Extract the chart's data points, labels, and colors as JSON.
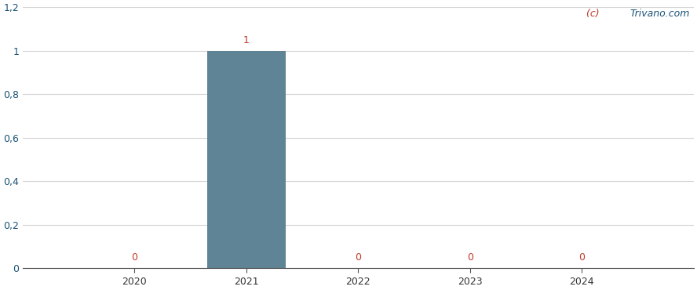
{
  "years": [
    2020,
    2021,
    2022,
    2023,
    2024
  ],
  "values": [
    0,
    1,
    0,
    0,
    0
  ],
  "bar_color": "#5f8496",
  "bar_label_color": "#c0392b",
  "background_color": "#ffffff",
  "grid_color": "#d5d5d5",
  "ylim": [
    0,
    1.2
  ],
  "yticks": [
    0,
    0.2,
    0.4,
    0.6,
    0.8,
    1.0,
    1.2
  ],
  "ytick_labels": [
    "0",
    "0,2",
    "0,4",
    "0,6",
    "0,8",
    "1",
    "1,2"
  ],
  "watermark_c": "(c) ",
  "watermark_rest": "Trivano.com",
  "watermark_color_c": "#c0392b",
  "watermark_color_rest": "#1a5276",
  "tick_color": "#333333",
  "ytick_color": "#1a5276",
  "figsize": [
    8.88,
    3.7
  ],
  "dpi": 100
}
